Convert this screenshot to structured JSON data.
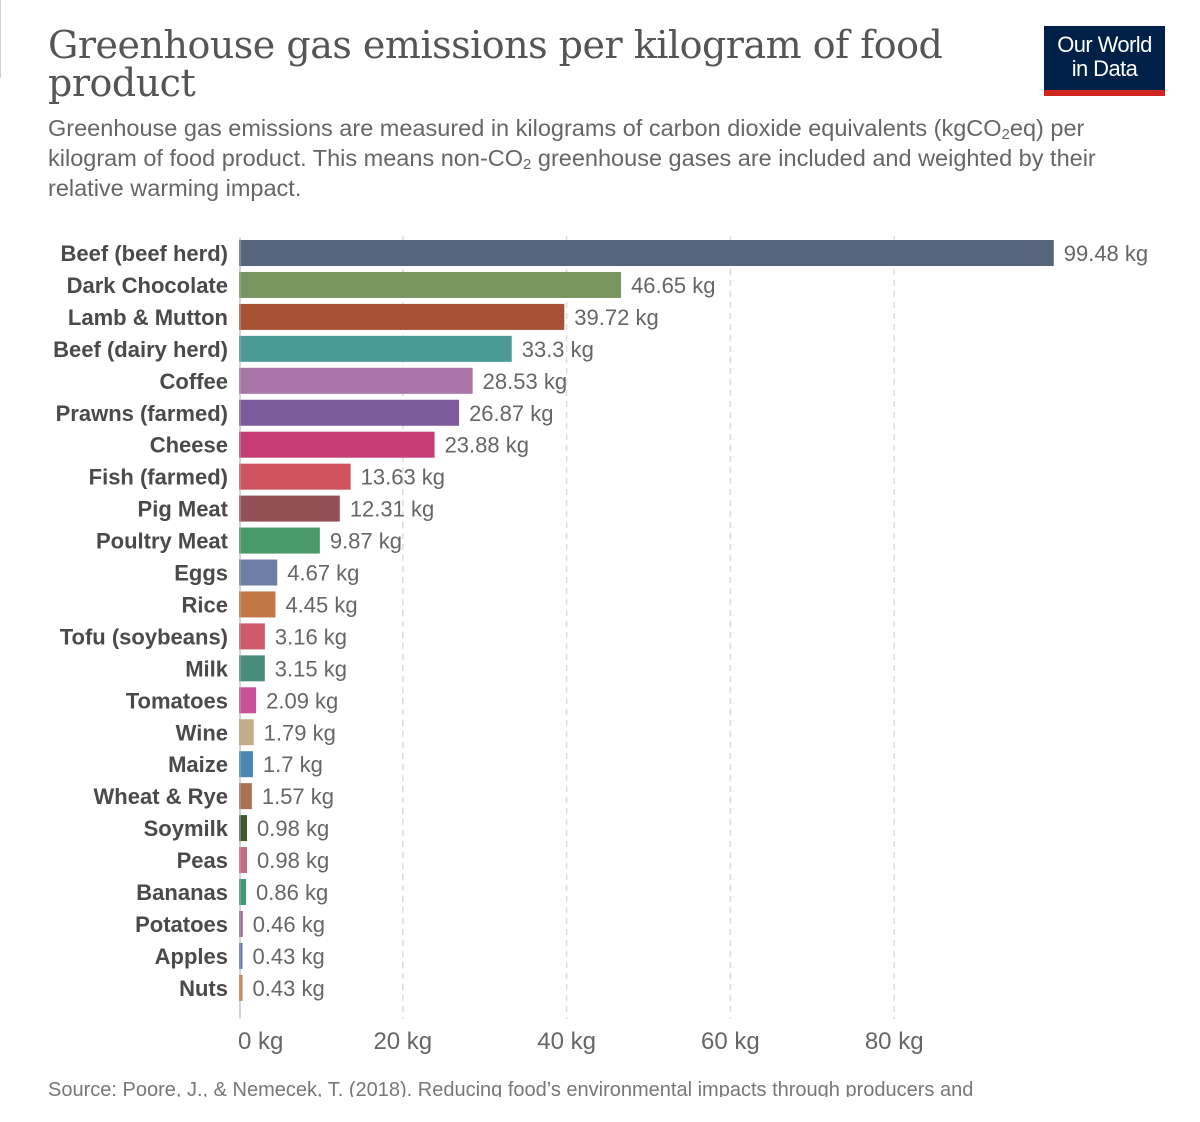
{
  "header": {
    "title": "Greenhouse gas emissions per kilogram of food product",
    "subtitle_part1": "Greenhouse gas emissions are measured in kilograms of carbon dioxide equivalents (kgCO",
    "subtitle_sub1": "2",
    "subtitle_part2": "eq) per kilogram of food product. This means non-CO",
    "subtitle_sub2": "2",
    "subtitle_part3": " greenhouse gases are included and weighted by their relative warming impact."
  },
  "logo": {
    "line1": "Our World",
    "line2": "in Data",
    "background_color": "#002147",
    "accent_color": "#ce261e"
  },
  "footer": {
    "source": "Source: Poore, J., & Nemecek, T. (2018). Reducing food’s environmental impacts through producers and"
  },
  "chart_data": {
    "type": "bar",
    "orientation": "horizontal",
    "unit_suffix": " kg",
    "categories": [
      "Beef (beef herd)",
      "Dark Chocolate",
      "Lamb & Mutton",
      "Beef (dairy herd)",
      "Coffee",
      "Prawns (farmed)",
      "Cheese",
      "Fish (farmed)",
      "Pig Meat",
      "Poultry Meat",
      "Eggs",
      "Rice",
      "Tofu (soybeans)",
      "Milk",
      "Tomatoes",
      "Wine",
      "Maize",
      "Wheat & Rye",
      "Soymilk",
      "Peas",
      "Bananas",
      "Potatoes",
      "Apples",
      "Nuts"
    ],
    "values": [
      99.48,
      46.65,
      39.72,
      33.3,
      28.53,
      26.87,
      23.88,
      13.63,
      12.31,
      9.87,
      4.67,
      4.45,
      3.16,
      3.15,
      2.09,
      1.79,
      1.7,
      1.57,
      0.98,
      0.98,
      0.86,
      0.46,
      0.43,
      0.43
    ],
    "value_labels": [
      "99.48 kg",
      "46.65 kg",
      "39.72 kg",
      "33.3 kg",
      "28.53 kg",
      "26.87 kg",
      "23.88 kg",
      "13.63 kg",
      "12.31 kg",
      "9.87 kg",
      "4.67 kg",
      "4.45 kg",
      "3.16 kg",
      "3.15 kg",
      "2.09 kg",
      "1.79 kg",
      "1.7 kg",
      "1.57 kg",
      "0.98 kg",
      "0.98 kg",
      "0.86 kg",
      "0.46 kg",
      "0.43 kg",
      "0.43 kg"
    ],
    "colors": [
      "#57657c",
      "#78945f",
      "#a95137",
      "#4a9b97",
      "#a874a8",
      "#7c5a9c",
      "#c73b76",
      "#cf535f",
      "#945057",
      "#499a68",
      "#6d7fa6",
      "#c27746",
      "#d0596b",
      "#4a8c7e",
      "#c9509b",
      "#c4ad86",
      "#4a85b6",
      "#a97254",
      "#3e5a2c",
      "#c96a85",
      "#3e9b74",
      "#9b6d8c",
      "#5c7ea8",
      "#c4843e"
    ],
    "xlim": [
      0,
      100
    ],
    "x_ticks": [
      0,
      20,
      40,
      60,
      80
    ],
    "x_tick_labels": [
      "0 kg",
      "20 kg",
      "40 kg",
      "60 kg",
      "80 kg"
    ],
    "grid": true,
    "title": "Greenhouse gas emissions per kilogram of food product",
    "xlabel": "",
    "ylabel": ""
  }
}
